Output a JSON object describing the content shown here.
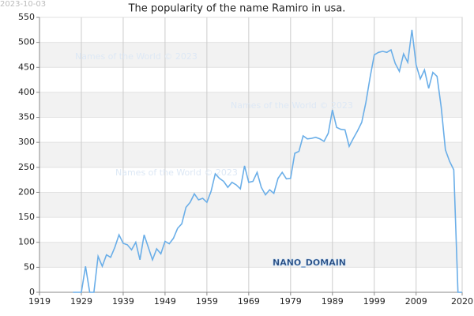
{
  "chart_data": {
    "type": "line",
    "title": "The popularity of the name Ramiro in usa.",
    "date": "2023-10-03",
    "watermark": "Names of the World © 2023",
    "domain_label": "NANO_DOMAIN",
    "x": [
      1927,
      1928,
      1929,
      1930,
      1931,
      1932,
      1933,
      1934,
      1935,
      1936,
      1937,
      1938,
      1939,
      1940,
      1941,
      1942,
      1943,
      1944,
      1945,
      1946,
      1947,
      1948,
      1949,
      1950,
      1951,
      1952,
      1953,
      1954,
      1955,
      1956,
      1957,
      1958,
      1959,
      1960,
      1961,
      1962,
      1963,
      1964,
      1965,
      1966,
      1967,
      1968,
      1969,
      1970,
      1971,
      1972,
      1973,
      1974,
      1975,
      1976,
      1977,
      1978,
      1979,
      1980,
      1981,
      1982,
      1983,
      1984,
      1985,
      1986,
      1987,
      1988,
      1989,
      1990,
      1991,
      1992,
      1993,
      1994,
      1995,
      1996,
      1997,
      1998,
      1999,
      2000,
      2001,
      2002,
      2003,
      2004,
      2005,
      2006,
      2007,
      2008,
      2009,
      2010,
      2011,
      2012,
      2013,
      2014,
      2015,
      2016,
      2017,
      2018,
      2019,
      2020
    ],
    "series": [
      {
        "name": "Ramiro",
        "color": "#6aaee8",
        "values": [
          0,
          0,
          0,
          52,
          0,
          0,
          72,
          52,
          75,
          70,
          90,
          115,
          98,
          95,
          85,
          100,
          65,
          115,
          90,
          65,
          87,
          77,
          102,
          97,
          108,
          128,
          137,
          170,
          180,
          197,
          185,
          188,
          180,
          202,
          237,
          228,
          222,
          210,
          220,
          215,
          207,
          253,
          220,
          222,
          240,
          210,
          195,
          205,
          198,
          228,
          240,
          227,
          228,
          278,
          282,
          313,
          307,
          308,
          310,
          307,
          302,
          318,
          365,
          330,
          326,
          325,
          292,
          308,
          323,
          340,
          380,
          430,
          475,
          480,
          482,
          480,
          485,
          458,
          442,
          477,
          460,
          525,
          455,
          427,
          445,
          408,
          440,
          432,
          370,
          285,
          262,
          245,
          0,
          0
        ]
      }
    ],
    "xlim": [
      1919,
      2020
    ],
    "xticks": [
      1919,
      1929,
      1939,
      1949,
      1959,
      1969,
      1979,
      1989,
      1999,
      2009,
      2020
    ],
    "ylim": [
      0,
      550
    ],
    "yticks": [
      0,
      50,
      100,
      150,
      200,
      250,
      300,
      350,
      400,
      450,
      500,
      550
    ],
    "grid": true
  }
}
